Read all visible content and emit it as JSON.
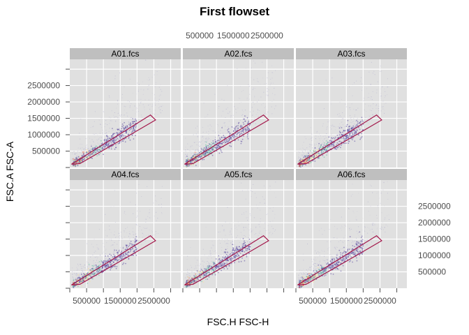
{
  "chart_data": {
    "type": "scatter",
    "title": "First flowset",
    "xlabel": "FSC.H FSC-H",
    "ylabel": "FSC.A FSC-A",
    "panels": [
      "A01.fcs",
      "A02.fcs",
      "A03.fcs",
      "A04.fcs",
      "A05.fcs",
      "A06.fcs"
    ],
    "layout": {
      "columns": 3,
      "rows": 2
    },
    "xlim": [
      0,
      3300000
    ],
    "ylim": [
      0,
      3300000
    ],
    "x_ticks": [
      500000,
      1000000,
      1500000,
      2000000,
      2500000,
      3000000
    ],
    "x_tick_labels": [
      "500000",
      "1500000",
      "2500000"
    ],
    "x_tick_label_values": [
      500000,
      1500000,
      2500000
    ],
    "y_ticks": [
      500000,
      1000000,
      1500000,
      2000000,
      2500000,
      3000000
    ],
    "y_tick_labels": [
      "500000",
      "1000000",
      "1500000",
      "2000000",
      "2500000"
    ],
    "y_tick_label_values": [
      500000,
      1000000,
      1500000,
      2000000,
      2500000
    ],
    "grid": true,
    "gate": {
      "vertices": [
        [
          50000,
          100000
        ],
        [
          2400000,
          1600000
        ],
        [
          2550000,
          1450000
        ],
        [
          1800000,
          1000000
        ],
        [
          300000,
          120000
        ]
      ]
    },
    "density_center": {
      "x": [
        200000,
        1600000
      ],
      "y": [
        200000,
        1000000
      ]
    },
    "colors": {
      "panel_bg": "#e0e0e0",
      "grid": "#ffffff",
      "strip": "#bfbfbf",
      "gate": "#a3174a",
      "point_low": "#9e99c9",
      "point_high": "#5e4fa2",
      "density_mid": "#66c2a5",
      "density_high": "#fee08b",
      "density_core": "#f46d43"
    }
  }
}
